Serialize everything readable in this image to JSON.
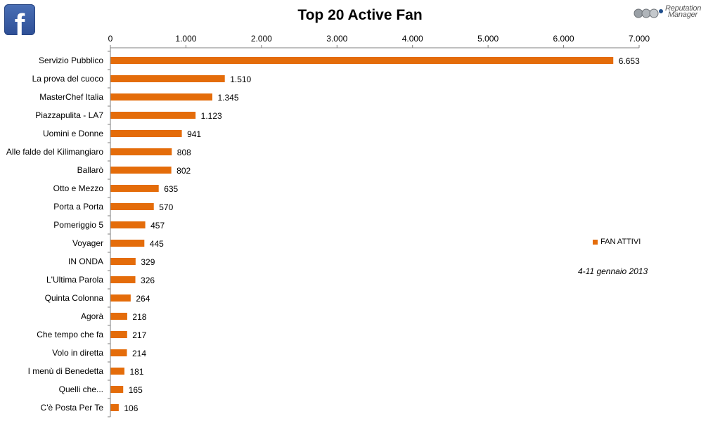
{
  "logos": {
    "left_icon": "facebook-f-icon",
    "right_brand": "Reputation Manager"
  },
  "chart_data": {
    "type": "bar",
    "orientation": "horizontal",
    "title": "Top 20 Active Fan",
    "categories": [
      "Servizio Pubblico",
      "La prova del cuoco",
      "MasterChef Italia",
      "Piazzapulita - LA7",
      "Uomini e Donne",
      "Alle falde del Kilimangiaro",
      "Ballarò",
      "Otto e Mezzo",
      "Porta a Porta",
      "Pomeriggio 5",
      "Voyager",
      "IN ONDA",
      "L'Ultima Parola",
      "Quinta Colonna",
      "Agorà",
      "Che tempo che fa",
      "Volo in diretta",
      "I menù di Benedetta",
      "Quelli che...",
      "C'è Posta Per Te"
    ],
    "series": [
      {
        "name": "FAN ATTIVI",
        "values": [
          6653,
          1510,
          1345,
          1123,
          941,
          808,
          802,
          635,
          570,
          457,
          445,
          329,
          326,
          264,
          218,
          217,
          214,
          181,
          165,
          106
        ],
        "labels": [
          "6.653",
          "1.510",
          "1.345",
          "1.123",
          "941",
          "808",
          "802",
          "635",
          "570",
          "457",
          "445",
          "329",
          "326",
          "264",
          "218",
          "217",
          "214",
          "181",
          "165",
          "106"
        ]
      }
    ],
    "xlim": [
      0,
      7000
    ],
    "ticks": [
      0,
      1000,
      2000,
      3000,
      4000,
      5000,
      6000,
      7000
    ],
    "tick_labels": [
      "0",
      "1.000",
      "2.000",
      "3.000",
      "4.000",
      "5.000",
      "6.000",
      "7.000"
    ],
    "axis_position": "top",
    "grid": false,
    "legend": "right",
    "bar_color": "#e46c0a",
    "annotation": "4-11 gennaio 2013"
  }
}
